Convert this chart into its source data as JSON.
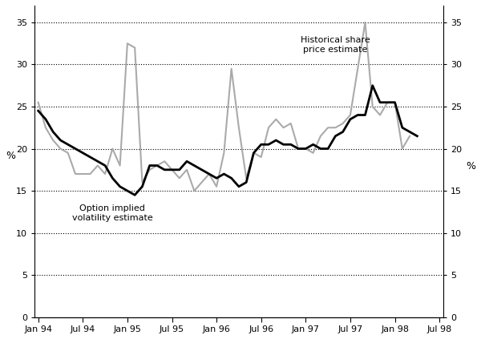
{
  "xlabel_ticks": [
    "Jan 94",
    "Jul 94",
    "Jan 95",
    "Jul 95",
    "Jan 96",
    "Jul 96",
    "Jan 97",
    "Jul 97",
    "Jan 98",
    "Jul 98"
  ],
  "yticks": [
    0,
    5,
    10,
    15,
    20,
    25,
    30,
    35
  ],
  "ylim": [
    0,
    37
  ],
  "implied_label": "Option implied\nvolatility estimate",
  "historical_label": "Historical share\nprice estimate",
  "implied_color": "#000000",
  "historical_color": "#aaaaaa",
  "implied_lw": 2.0,
  "historical_lw": 1.5,
  "x_values": [
    0,
    1,
    2,
    3,
    4,
    5,
    6,
    7,
    8,
    9,
    10,
    11,
    12,
    13,
    14,
    15,
    16,
    17,
    18,
    19,
    20,
    21,
    22,
    23,
    24,
    25,
    26,
    27,
    28,
    29,
    30,
    31,
    32,
    33,
    34,
    35,
    36,
    37,
    38,
    39,
    40,
    41,
    42,
    43,
    44,
    45,
    46,
    47,
    48,
    49,
    50,
    51,
    52,
    53,
    54
  ],
  "implied_vol": [
    24.5,
    23.5,
    22.0,
    21.0,
    20.5,
    20.0,
    19.5,
    19.0,
    18.5,
    18.0,
    16.5,
    15.5,
    15.0,
    14.5,
    15.5,
    18.0,
    18.0,
    17.5,
    17.5,
    17.5,
    18.5,
    18.0,
    17.5,
    17.0,
    16.5,
    17.0,
    16.5,
    15.5,
    16.0,
    19.5,
    20.5,
    20.5,
    21.0,
    20.5,
    20.5,
    20.0,
    20.0,
    20.5,
    20.0,
    20.0,
    21.5,
    22.0,
    23.5,
    24.0,
    24.0,
    27.5,
    25.5,
    25.5,
    25.5,
    22.5,
    22.0,
    21.5,
    null,
    null,
    null
  ],
  "historical_vol": [
    25.5,
    22.5,
    21.0,
    20.0,
    19.5,
    17.0,
    17.0,
    17.0,
    18.0,
    17.0,
    20.0,
    18.0,
    32.5,
    32.0,
    16.0,
    17.5,
    18.0,
    18.5,
    17.5,
    16.5,
    17.5,
    15.0,
    16.0,
    17.0,
    15.5,
    19.5,
    29.5,
    22.5,
    16.5,
    19.5,
    19.0,
    22.5,
    23.5,
    22.5,
    23.0,
    20.0,
    20.0,
    19.5,
    21.5,
    22.5,
    22.5,
    23.0,
    24.0,
    29.5,
    35.0,
    25.0,
    24.0,
    25.5,
    25.5,
    20.0,
    21.5,
    null,
    null,
    null,
    null
  ]
}
